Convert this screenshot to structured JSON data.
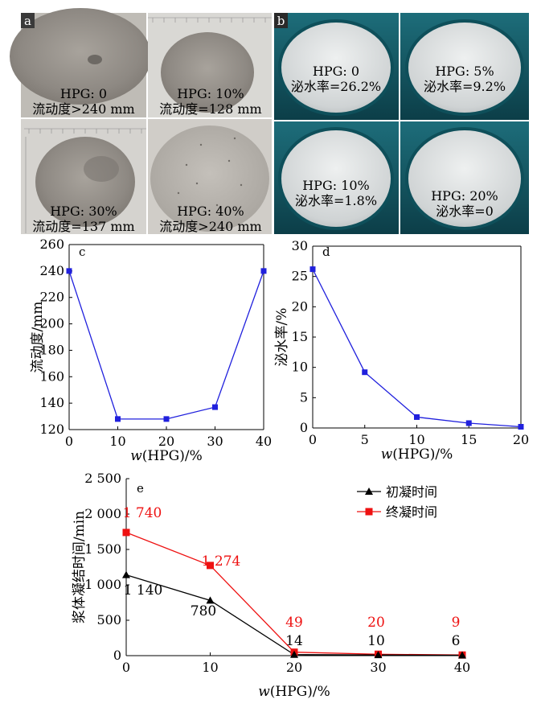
{
  "photos": {
    "a": {
      "letter": "a",
      "panels": [
        {
          "line1": "HPG: 0",
          "line2": "流动度>240 mm"
        },
        {
          "line1": "HPG: 10%",
          "line2": "流动度=128 mm"
        },
        {
          "line1": "HPG: 30%",
          "line2": "流动度=137 mm"
        },
        {
          "line1": "HPG: 40%",
          "line2": "流动度>240 mm"
        }
      ]
    },
    "b": {
      "letter": "b",
      "panels": [
        {
          "line1": "HPG: 0",
          "line2": "泌水率=26.2%"
        },
        {
          "line1": "HPG: 5%",
          "line2": "泌水率=9.2%"
        },
        {
          "line1": "HPG: 10%",
          "line2": "泌水率=1.8%"
        },
        {
          "line1": "HPG: 20%",
          "line2": "泌水率=0"
        }
      ]
    }
  },
  "colors": {
    "series_blue": "#2020dd",
    "initial_set": "#000000",
    "final_set": "#ee1111",
    "label_red": "#ee1111"
  },
  "chart_data": [
    {
      "id": "c",
      "letter": "c",
      "type": "line",
      "x": [
        0,
        10,
        20,
        30,
        40
      ],
      "series": [
        {
          "values": [
            240,
            128,
            128,
            137,
            240
          ]
        }
      ],
      "xlabel": "w(HPG)/%",
      "ylabel": "流动度/mm",
      "xlim": [
        0,
        40
      ],
      "ylim": [
        120,
        260
      ],
      "xticks": [
        0,
        10,
        20,
        30,
        40
      ],
      "yticks": [
        120,
        140,
        160,
        180,
        200,
        220,
        240,
        260
      ],
      "ytick_labels": [
        "120",
        "140",
        "160",
        "180",
        "200",
        "220",
        "240",
        "260"
      ],
      "grid": false
    },
    {
      "id": "d",
      "letter": "d",
      "type": "line",
      "x": [
        0,
        5,
        10,
        15,
        20
      ],
      "series": [
        {
          "values": [
            26.2,
            9.2,
            1.8,
            0.8,
            0.2
          ]
        }
      ],
      "xlabel": "w(HPG)/%",
      "ylabel": "泌水率/%",
      "xlim": [
        0,
        20
      ],
      "ylim": [
        0,
        30
      ],
      "xticks": [
        0,
        5,
        10,
        15,
        20
      ],
      "yticks": [
        0,
        5,
        10,
        15,
        20,
        25,
        30
      ],
      "ytick_labels": [
        "0",
        "5",
        "10",
        "15",
        "20",
        "25",
        "30"
      ],
      "grid": false
    },
    {
      "id": "e",
      "letter": "e",
      "type": "line",
      "x": [
        0,
        10,
        20,
        30,
        40
      ],
      "series": [
        {
          "name": "初凝时间",
          "values": [
            1140,
            780,
            14,
            10,
            6
          ],
          "labels": [
            "1 140",
            "780",
            "14",
            "10",
            "6"
          ]
        },
        {
          "name": "终凝时间",
          "values": [
            1740,
            1274,
            49,
            20,
            9
          ],
          "labels": [
            "1 740",
            "1 274",
            "49",
            "20",
            "9"
          ]
        }
      ],
      "xlabel": "w(HPG)/%",
      "ylabel": "浆体凝结时间/min",
      "xlim": [
        0,
        40
      ],
      "ylim": [
        0,
        2500
      ],
      "xticks": [
        0,
        10,
        20,
        30,
        40
      ],
      "yticks": [
        0,
        500,
        1000,
        1500,
        2000,
        2500
      ],
      "ytick_labels": [
        "0",
        "500",
        "1 000",
        "1 500",
        "2 000",
        "2 500"
      ],
      "legend": "top-right",
      "grid": false
    }
  ]
}
